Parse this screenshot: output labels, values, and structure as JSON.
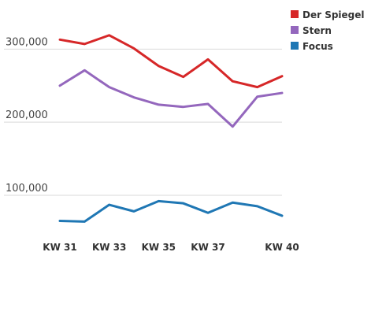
{
  "chart_data": {
    "type": "line",
    "x": [
      31,
      32,
      33,
      34,
      35,
      36,
      37,
      38,
      39,
      40
    ],
    "xtick_labels": [
      {
        "x": 31,
        "label": "KW 31"
      },
      {
        "x": 33,
        "label": "KW 33"
      },
      {
        "x": 35,
        "label": "KW 35"
      },
      {
        "x": 37,
        "label": "KW 37"
      },
      {
        "x": 40,
        "label": "KW 40"
      }
    ],
    "xlim": [
      31,
      40
    ],
    "ylim": [
      45000,
      350000
    ],
    "yticks": [
      {
        "value": 100000,
        "label": "100,000"
      },
      {
        "value": 200000,
        "label": "200,000"
      },
      {
        "value": 300000,
        "label": "300,000"
      }
    ],
    "grid": true,
    "legend_position": "top-right",
    "series": [
      {
        "name": "Der Spiegel",
        "color": "#d62728",
        "values": [
          313000,
          307000,
          319000,
          301000,
          277000,
          262000,
          286000,
          256000,
          248000,
          263000
        ]
      },
      {
        "name": "Stern",
        "color": "#9467bd",
        "values": [
          250000,
          271000,
          248000,
          234000,
          224000,
          221000,
          225000,
          194000,
          235000,
          240000
        ]
      },
      {
        "name": "Focus",
        "color": "#1f77b4",
        "values": [
          65000,
          64000,
          87000,
          78000,
          92000,
          89000,
          76000,
          90000,
          85000,
          72000
        ]
      }
    ]
  }
}
